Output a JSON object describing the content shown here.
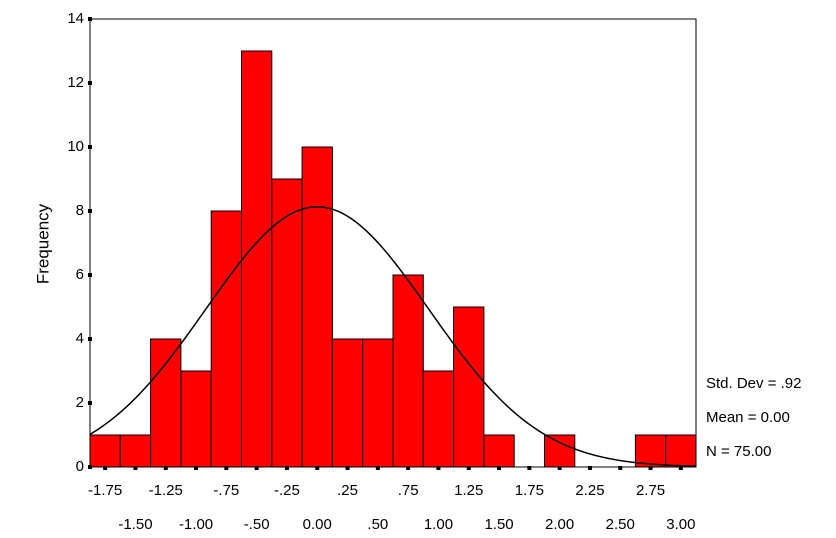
{
  "chart_data": {
    "type": "histogram",
    "y_label": "Frequency",
    "bins": [
      -1.875,
      -1.625,
      -1.375,
      -1.125,
      -0.875,
      -0.625,
      -0.375,
      -0.125,
      0.125,
      0.375,
      0.625,
      0.875,
      1.125,
      1.375,
      1.625,
      1.875,
      2.125,
      2.375,
      2.625,
      2.875,
      3.125
    ],
    "values": [
      1,
      1,
      4,
      3,
      8,
      13,
      9,
      10,
      4,
      4,
      6,
      3,
      5,
      1,
      0,
      1,
      0,
      0,
      1,
      1
    ],
    "color": "#ff0000",
    "xlim": [
      -1.875,
      3.125
    ],
    "xticks": [
      {
        "value": -1.75,
        "label": "-1.75"
      },
      {
        "value": -1.5,
        "label": "-1.50"
      },
      {
        "value": -1.25,
        "label": "-1.25"
      },
      {
        "value": -1.0,
        "label": "-1.00"
      },
      {
        "value": -0.75,
        "label": "-.75"
      },
      {
        "value": -0.5,
        "label": "-.50"
      },
      {
        "value": -0.25,
        "label": "-.25"
      },
      {
        "value": 0,
        "label": "0.00"
      },
      {
        "value": 0.25,
        "label": ".25"
      },
      {
        "value": 0.5,
        "label": ".50"
      },
      {
        "value": 0.75,
        "label": ".75"
      },
      {
        "value": 1.0,
        "label": "1.00"
      },
      {
        "value": 1.25,
        "label": "1.25"
      },
      {
        "value": 1.5,
        "label": "1.50"
      },
      {
        "value": 1.75,
        "label": "1.75"
      },
      {
        "value": 2.0,
        "label": "2.00"
      },
      {
        "value": 2.25,
        "label": "2.25"
      },
      {
        "value": 2.5,
        "label": "2.50"
      },
      {
        "value": 2.75,
        "label": "2.75"
      },
      {
        "value": 3.0,
        "label": "3.00"
      }
    ],
    "ylim": [
      0,
      14
    ],
    "yticks": [
      0,
      2,
      4,
      6,
      8,
      10,
      12,
      14
    ],
    "normal_curve": {
      "mean": 0,
      "std_dev": 0.92,
      "n": 75
    },
    "stats_labels": [
      "Std. Dev = .92",
      "Mean = 0.00",
      "N = 75.00"
    ]
  }
}
